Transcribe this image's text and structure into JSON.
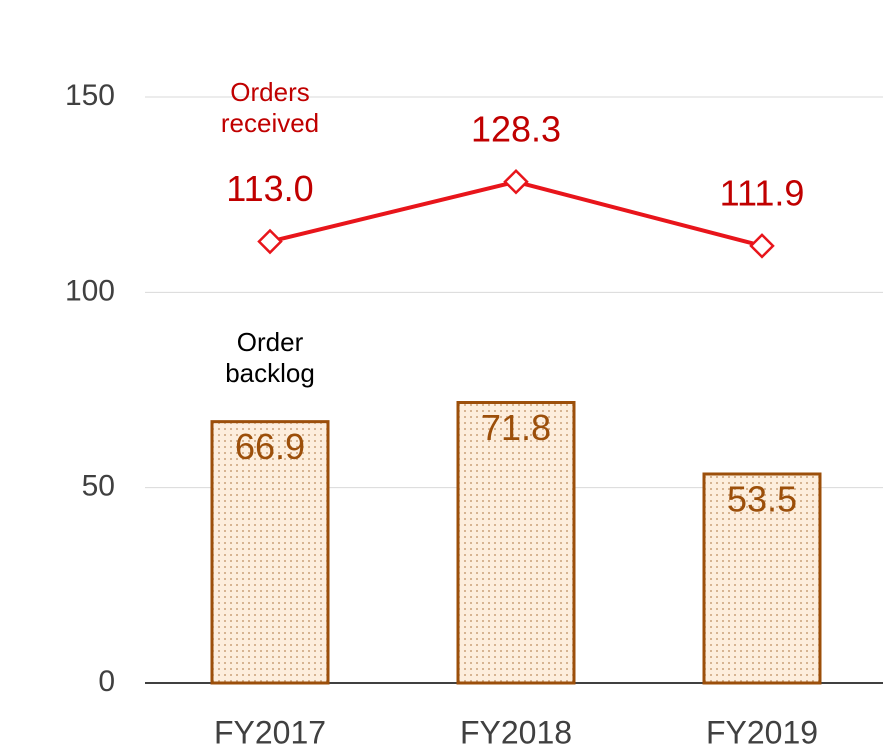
{
  "chart_data": {
    "type": "bar+line",
    "categories": [
      "FY2017",
      "FY2018",
      "FY2019"
    ],
    "series": [
      {
        "name": "Order backlog",
        "type": "bar",
        "color": "#9c4f0a",
        "values": [
          66.9,
          71.8,
          53.5
        ]
      },
      {
        "name": "Orders received",
        "type": "line",
        "color": "#e8151b",
        "values": [
          113.0,
          128.3,
          111.9
        ],
        "value_labels": [
          "113.0",
          "128.3",
          "111.9"
        ]
      }
    ],
    "ylim": [
      0,
      150
    ],
    "yticks": [
      0,
      50,
      100,
      150
    ],
    "grid": true
  }
}
